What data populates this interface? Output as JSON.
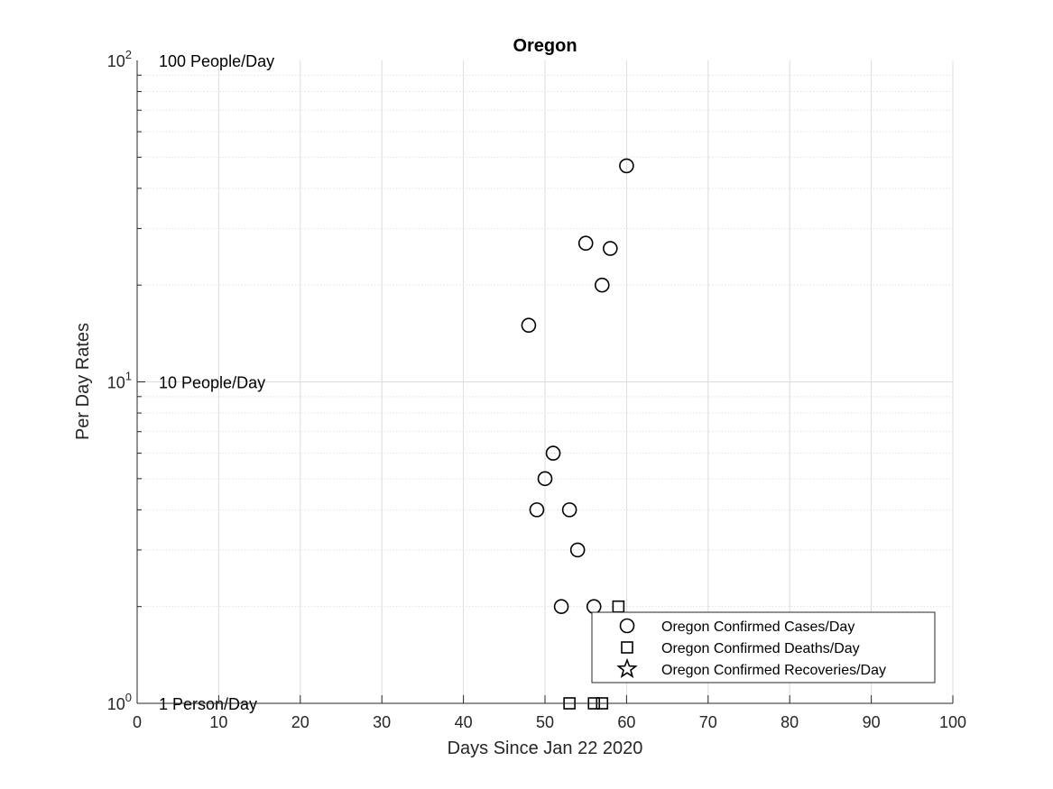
{
  "chart_data": {
    "type": "scatter",
    "title": "Oregon",
    "xlabel": "Days Since Jan 22 2020",
    "ylabel": "Per Day Rates",
    "xlim": [
      0,
      100
    ],
    "ylim": [
      1,
      100
    ],
    "yscale": "log",
    "grid": true,
    "x_ticks": [
      0,
      10,
      20,
      30,
      40,
      50,
      60,
      70,
      80,
      90,
      100
    ],
    "y_ticks": [
      {
        "base": "10",
        "exp": "0",
        "value": 1
      },
      {
        "base": "10",
        "exp": "1",
        "value": 10
      },
      {
        "base": "10",
        "exp": "2",
        "value": 100
      }
    ],
    "annotations": [
      {
        "text": "100 People/Day",
        "y": 100
      },
      {
        "text": "10 People/Day",
        "y": 10
      },
      {
        "text": "1 Person/Day",
        "y": 1
      }
    ],
    "legend_position": "bottom-right",
    "series": [
      {
        "name": "Oregon Confirmed Cases/Day",
        "marker": "circle",
        "points": [
          {
            "x": 48,
            "y": 15
          },
          {
            "x": 49,
            "y": 4
          },
          {
            "x": 50,
            "y": 5
          },
          {
            "x": 51,
            "y": 6
          },
          {
            "x": 52,
            "y": 2
          },
          {
            "x": 53,
            "y": 4
          },
          {
            "x": 54,
            "y": 3
          },
          {
            "x": 55,
            "y": 27
          },
          {
            "x": 56,
            "y": 2
          },
          {
            "x": 57,
            "y": 20
          },
          {
            "x": 58,
            "y": 26
          },
          {
            "x": 60,
            "y": 47
          }
        ]
      },
      {
        "name": "Oregon Confirmed Deaths/Day",
        "marker": "square",
        "points": [
          {
            "x": 53,
            "y": 1
          },
          {
            "x": 56,
            "y": 1
          },
          {
            "x": 57,
            "y": 1
          },
          {
            "x": 59,
            "y": 2
          }
        ]
      },
      {
        "name": "Oregon Confirmed Recoveries/Day",
        "marker": "star",
        "points": []
      }
    ]
  }
}
